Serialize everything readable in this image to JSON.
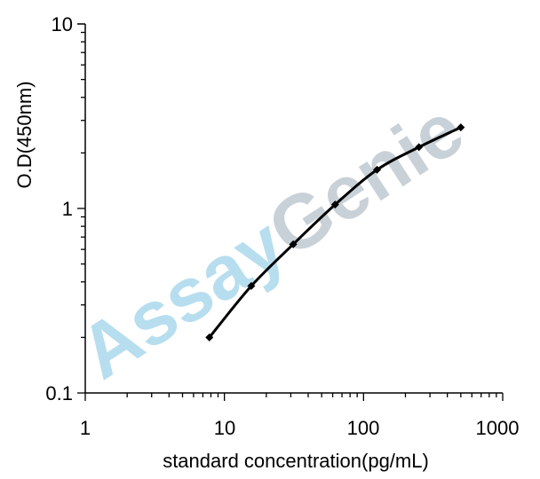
{
  "chart_data": {
    "type": "line",
    "title": "",
    "xlabel": "standard concentration(pg/mL)",
    "ylabel": "O.D(450nm)",
    "x_scale": "log",
    "y_scale": "log",
    "xlim": [
      1,
      1000
    ],
    "ylim": [
      0.1,
      10
    ],
    "x_ticks": [
      "1",
      "10",
      "100",
      "1000"
    ],
    "y_ticks": [
      "0.1",
      "1",
      "10"
    ],
    "grid": false,
    "legend": "none",
    "series": [
      {
        "x": [
          7.8,
          15.6,
          31.25,
          62.5,
          125,
          250,
          500
        ],
        "y": [
          0.2,
          0.38,
          0.64,
          1.05,
          1.62,
          2.15,
          2.75
        ],
        "color": "#000000"
      }
    ],
    "watermark": {
      "word1": "Assay",
      "word2": "Genie",
      "color1": "#9fd3ea",
      "color2": "#b8c2cb"
    }
  }
}
